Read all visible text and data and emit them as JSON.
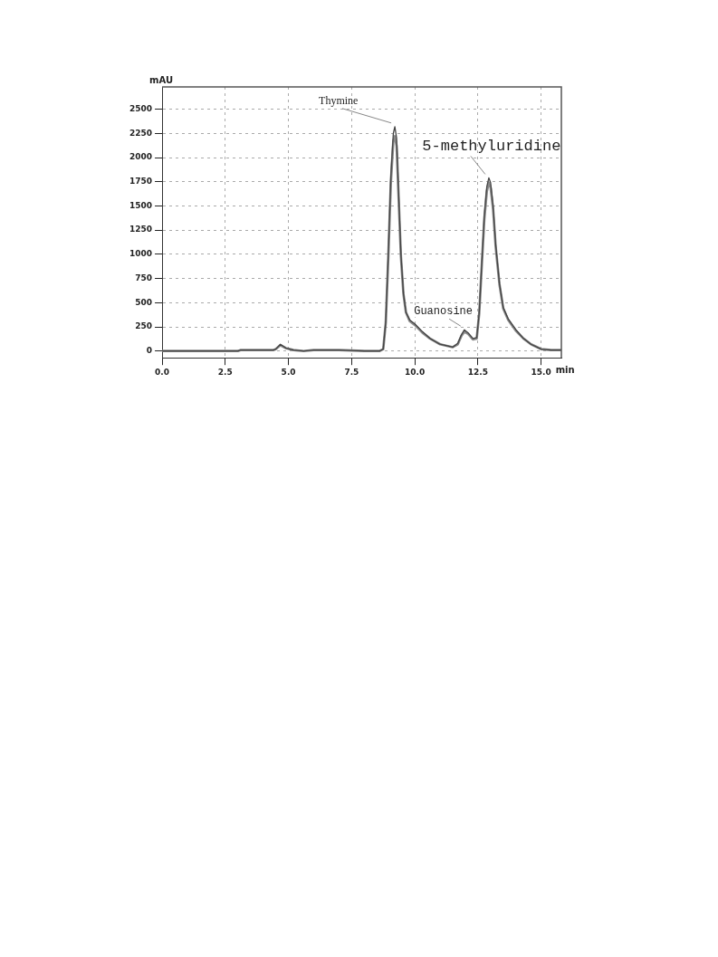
{
  "chart_data": {
    "type": "line",
    "ylabel": "mAU",
    "xlabel": "min",
    "xlim": [
      0,
      15.8
    ],
    "ylim": [
      -70,
      2730
    ],
    "xticks": [
      {
        "value": 0,
        "label": "0.0"
      },
      {
        "value": 2.5,
        "label": "2.5"
      },
      {
        "value": 5,
        "label": "5.0"
      },
      {
        "value": 7.5,
        "label": "7.5"
      },
      {
        "value": 10,
        "label": "10.0"
      },
      {
        "value": 12.5,
        "label": "12.5"
      },
      {
        "value": 15,
        "label": "15.0"
      }
    ],
    "yticks": [
      0,
      250,
      500,
      750,
      1000,
      1250,
      1500,
      1750,
      2000,
      2250,
      2500
    ],
    "grid": true,
    "marker": "none",
    "line_style": "solid",
    "legend": false,
    "x": [
      0,
      3.0,
      3.1,
      4.4,
      4.5,
      4.68,
      4.9,
      5.2,
      5.6,
      6.0,
      7.0,
      8.0,
      8.6,
      8.75,
      8.85,
      8.95,
      9.05,
      9.15,
      9.21,
      9.28,
      9.35,
      9.45,
      9.55,
      9.65,
      9.8,
      10.0,
      10.3,
      10.6,
      11.0,
      11.5,
      11.7,
      11.85,
      11.96,
      12.1,
      12.3,
      12.45,
      12.55,
      12.65,
      12.75,
      12.85,
      12.93,
      13.0,
      13.1,
      13.2,
      13.35,
      13.5,
      13.7,
      14.0,
      14.3,
      14.6,
      15.0,
      15.4,
      15.8
    ],
    "series": [
      {
        "color": "#444444",
        "values": [
          0,
          0,
          10,
          10,
          20,
          70,
          30,
          10,
          0,
          10,
          10,
          0,
          0,
          20,
          300,
          1000,
          1800,
          2250,
          2320,
          2200,
          1700,
          1000,
          600,
          400,
          320,
          280,
          200,
          130,
          70,
          40,
          80,
          170,
          220,
          190,
          130,
          140,
          400,
          900,
          1400,
          1700,
          1790,
          1740,
          1500,
          1100,
          700,
          450,
          330,
          220,
          130,
          70,
          20,
          10,
          10
        ]
      },
      {
        "color": "#8a8a8a",
        "values": [
          0,
          0,
          10,
          10,
          20,
          60,
          30,
          10,
          0,
          10,
          10,
          0,
          0,
          20,
          290,
          960,
          1730,
          2170,
          2220,
          2120,
          1650,
          980,
          590,
          400,
          310,
          270,
          190,
          130,
          70,
          40,
          70,
          160,
          200,
          180,
          120,
          130,
          390,
          880,
          1360,
          1650,
          1740,
          1690,
          1460,
          1080,
          690,
          440,
          320,
          210,
          130,
          70,
          20,
          10,
          10
        ]
      }
    ],
    "annotations": [
      {
        "text": "Thymine",
        "x": 9.21,
        "y": 2320
      },
      {
        "text": "5-methyluridine",
        "x": 12.93,
        "y": 1790
      },
      {
        "text": "Guanosine",
        "x": 11.96,
        "y": 220
      }
    ]
  }
}
